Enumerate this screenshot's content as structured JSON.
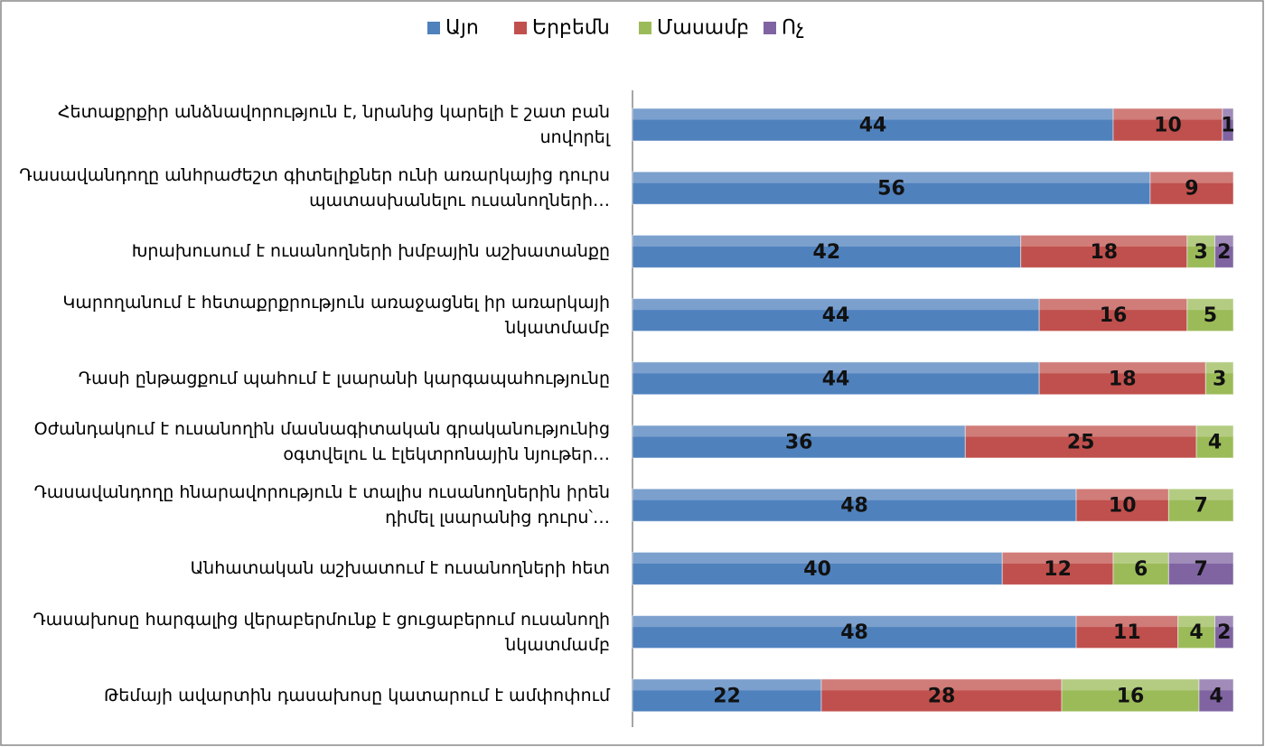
{
  "chart_data": {
    "type": "bar",
    "orientation": "horizontal",
    "stacking": "percent",
    "categories": [
      "Հետաքրքիր անձնավորություն է, նրանից կարելի է շատ բան սովորել",
      "Դասավանդողը անհրաժեշտ գիտելիքներ ունի առարկայից դուրս պատասխանելու ուսանողների…",
      "Խրախուսում է ուսանողների  խմբային աշխատանքը",
      "Կարողանում է հետաքրքրություն առաջացնել իր առարկայի նկատմամբ",
      "Դասի ընթացքում պահում է լսարանի կարգապահությունը",
      "Օժանդակում է ուսանողին մասնագիտական գրականությունից օգտվելու և էլեկտրոնային նյութեր…",
      "Դասավանդողը հնարավորություն է տալիս ուսանողներին իրեն դիմել լսարանից դուրս՝…",
      "Անհատական աշխատում է ուսանողների հետ",
      "Դասախոսը հարգալից վերաբերմունք է ցուցաբերում ուսանողի նկատմամբ",
      "Թեմայի ավարտին դասախոսը կատարում է ամփոփում"
    ],
    "series": [
      {
        "name": "Այո",
        "color": "#4f81bd",
        "values": [
          44,
          56,
          42,
          44,
          44,
          36,
          48,
          40,
          48,
          22
        ]
      },
      {
        "name": "Երբեմն",
        "color": "#c0504d",
        "values": [
          10,
          9,
          18,
          16,
          18,
          25,
          10,
          12,
          11,
          28
        ]
      },
      {
        "name": "Մասամբ",
        "color": "#9bbb59",
        "values": [
          null,
          null,
          3,
          5,
          3,
          4,
          7,
          6,
          4,
          16
        ]
      },
      {
        "name": "Ոչ",
        "color": "#8064a2",
        "values": [
          1,
          null,
          2,
          null,
          null,
          null,
          null,
          7,
          2,
          4
        ]
      }
    ],
    "legend": "top"
  }
}
